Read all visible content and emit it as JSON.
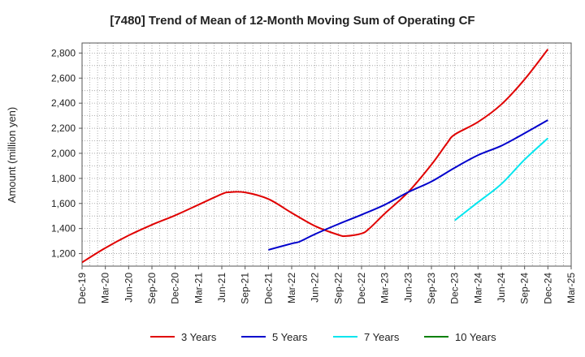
{
  "chart_data": {
    "type": "line",
    "title": "[7480]  Trend of Mean of 12-Month Moving Sum of Operating CF",
    "xlabel": "",
    "ylabel": "Amount (million yen)",
    "ylim": [
      1100,
      2880
    ],
    "yticks": [
      1200,
      1400,
      1600,
      1800,
      2000,
      2200,
      2400,
      2600,
      2800
    ],
    "ytick_labels": [
      "1,200",
      "1,400",
      "1,600",
      "1,800",
      "2,000",
      "2,200",
      "2,400",
      "2,600",
      "2,800"
    ],
    "xlim": [
      0,
      63
    ],
    "xticks": [
      0,
      3,
      6,
      9,
      12,
      15,
      18,
      21,
      24,
      27,
      30,
      33,
      36,
      39,
      42,
      45,
      48,
      51,
      54,
      57,
      60,
      63
    ],
    "xtick_labels": [
      "Dec-19",
      "Mar-20",
      "Jun-20",
      "Sep-20",
      "Dec-20",
      "Mar-21",
      "Jun-21",
      "Sep-21",
      "Dec-21",
      "Mar-22",
      "Jun-22",
      "Sep-22",
      "Dec-22",
      "Mar-23",
      "Jun-23",
      "Sep-23",
      "Dec-23",
      "Mar-24",
      "Jun-24",
      "Sep-24",
      "Dec-24",
      "Mar-25"
    ],
    "grid": true,
    "legend_position": "bottom",
    "series": [
      {
        "name": "3 Years",
        "color": "#e00000",
        "x": [
          0,
          3,
          6,
          9,
          12,
          15,
          18,
          19,
          21,
          24,
          27,
          30,
          33,
          34,
          36,
          37,
          39,
          42,
          45,
          47,
          48,
          51,
          54,
          57,
          60
        ],
        "y": [
          1130,
          1245,
          1345,
          1430,
          1505,
          1590,
          1675,
          1690,
          1688,
          1635,
          1525,
          1420,
          1350,
          1340,
          1360,
          1400,
          1520,
          1690,
          1910,
          2080,
          2150,
          2250,
          2390,
          2590,
          2830
        ]
      },
      {
        "name": "5 Years",
        "color": "#0000cc",
        "x": [
          24,
          27,
          28,
          30,
          33,
          36,
          39,
          42,
          45,
          48,
          51,
          54,
          57,
          60
        ],
        "y": [
          1230,
          1280,
          1295,
          1355,
          1435,
          1510,
          1590,
          1690,
          1775,
          1885,
          1985,
          2060,
          2160,
          2265
        ]
      },
      {
        "name": "7 Years",
        "color": "#00e5ee",
        "x": [
          48,
          51,
          54,
          57,
          60
        ],
        "y": [
          1465,
          1610,
          1755,
          1950,
          2120
        ]
      },
      {
        "name": "10 Years",
        "color": "#008000",
        "x": [],
        "y": []
      }
    ]
  }
}
